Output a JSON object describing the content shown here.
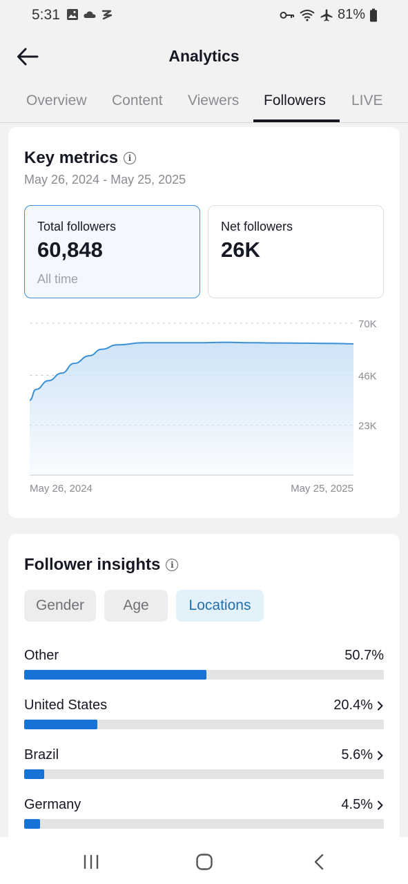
{
  "status_bar": {
    "time": "5:31",
    "battery": "81%",
    "left_icons": [
      "image-icon",
      "cloud-icon",
      "app-notification-icon"
    ],
    "right_icons": [
      "key-icon",
      "wifi-icon",
      "airplane-icon",
      "battery-icon"
    ]
  },
  "app_bar": {
    "title": "Analytics",
    "back_icon": "arrow-left-icon"
  },
  "tabs": [
    {
      "label": "Overview",
      "active": false
    },
    {
      "label": "Content",
      "active": false
    },
    {
      "label": "Viewers",
      "active": false
    },
    {
      "label": "Followers",
      "active": true
    },
    {
      "label": "LIVE",
      "active": false
    }
  ],
  "key_metrics": {
    "title": "Key metrics",
    "date_range": "May 26, 2024 - May 25, 2025",
    "cards": [
      {
        "label": "Total followers",
        "value": "60,848",
        "sub": "All time",
        "selected": true
      },
      {
        "label": "Net followers",
        "value": "26K",
        "sub": "",
        "selected": false
      }
    ]
  },
  "chart_data": {
    "type": "area",
    "title": "",
    "xlabel": "",
    "ylabel": "",
    "x_tick_labels": [
      "May 26, 2024",
      "May 25, 2025"
    ],
    "y_tick_labels": [
      "70K",
      "46K",
      "23K"
    ],
    "y_ticks": [
      70000,
      46000,
      23000
    ],
    "ylim": [
      0,
      70000
    ],
    "grid": true,
    "line_color": "#3a8fd6",
    "fill_color": "#cfe4f7",
    "series": [
      {
        "x": [
          "2024-05-26",
          "2024-06-02",
          "2024-06-16",
          "2024-07-01",
          "2024-07-15",
          "2024-08-01",
          "2024-08-15",
          "2024-09-01",
          "2024-10-01",
          "2024-11-01",
          "2024-12-01",
          "2025-01-01",
          "2025-02-01",
          "2025-03-01",
          "2025-04-01",
          "2025-05-01",
          "2025-05-25"
        ],
        "values": [
          34500,
          39500,
          43500,
          47000,
          51500,
          55000,
          58000,
          60000,
          61000,
          61000,
          61000,
          61200,
          61000,
          60900,
          60800,
          60700,
          60500
        ]
      }
    ]
  },
  "follower_insights": {
    "title": "Follower insights",
    "pills": [
      {
        "label": "Gender",
        "active": false
      },
      {
        "label": "Age",
        "active": false
      },
      {
        "label": "Locations",
        "active": true
      }
    ],
    "locations": [
      {
        "name": "Other",
        "pct_label": "50.7%",
        "pct": 50.7,
        "chevron": false
      },
      {
        "name": "United States",
        "pct_label": "20.4%",
        "pct": 20.4,
        "chevron": true
      },
      {
        "name": "Brazil",
        "pct_label": "5.6%",
        "pct": 5.6,
        "chevron": true
      },
      {
        "name": "Germany",
        "pct_label": "4.5%",
        "pct": 4.5,
        "chevron": true
      }
    ]
  },
  "nav_bar": {
    "buttons": [
      "recent-apps-icon",
      "home-icon",
      "back-icon"
    ]
  }
}
